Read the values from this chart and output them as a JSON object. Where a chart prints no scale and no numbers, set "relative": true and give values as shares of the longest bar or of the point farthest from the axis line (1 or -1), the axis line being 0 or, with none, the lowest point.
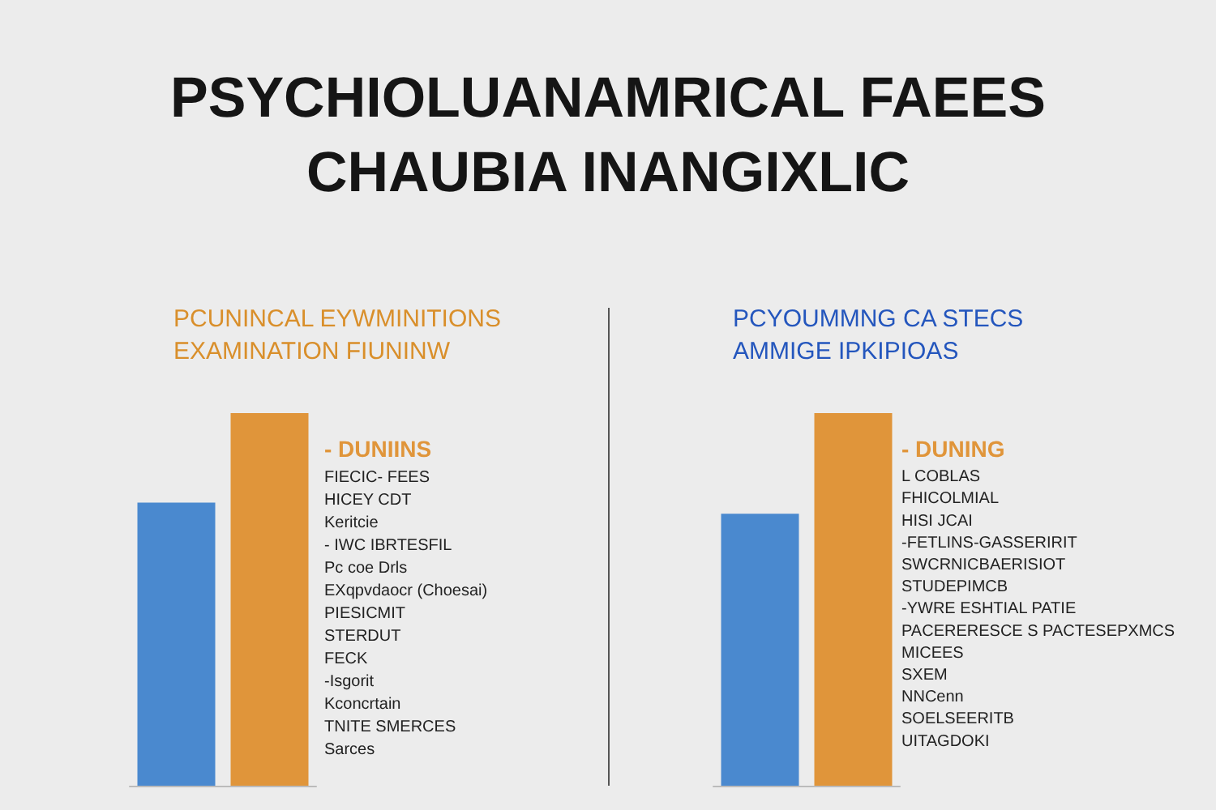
{
  "chart_data": [
    {
      "type": "bar",
      "title": "PSYCHIOLUANAMRICAL FAEES\nCHAUBIA INANGIXLIC",
      "subtitle": "PCUNINCAL EYWMINITIONS\nEXAMINATION FIUNINW",
      "categories": [
        null,
        null
      ],
      "values": [
        0.76,
        1
      ],
      "colors": [
        "#4a89cf",
        "#e0953a"
      ],
      "relative": true,
      "annotations": [
        "- DUNIINS",
        "FIECIC- FEES",
        "HICEY CDT",
        "Keritcie",
        "- IWC IBRTESFIL",
        "Pc coe Drls",
        "EXqpvdaocr (Choesai)",
        "PIESICMIT",
        "STERDUT",
        "FECK",
        "-Isgorit",
        "Kconcrtain",
        "TNITE SMERCES",
        "Sarces"
      ]
    },
    {
      "type": "bar",
      "subtitle": "PCYOUMMNG CA STECS\nAMMIGE IPKIPIOAS",
      "categories": [
        null,
        null
      ],
      "values": [
        0.73,
        1
      ],
      "colors": [
        "#4a89cf",
        "#e0953a"
      ],
      "relative": true,
      "annotations": [
        "- DUNING",
        "L COBLAS",
        "FHICOLMIAL",
        "HISI JCAI",
        "-FETLINS-GASSERIRIT",
        "SWCRNICBAERISIOT",
        "STUDEPIMCB",
        "-YWRE ESHTIAL PATIE",
        "PACERERESCE S PACTESEPXMCS",
        "MICEES",
        "SXEM",
        "NNCenn",
        "SOELSEERITB",
        "UITAGDOKI"
      ]
    }
  ]
}
